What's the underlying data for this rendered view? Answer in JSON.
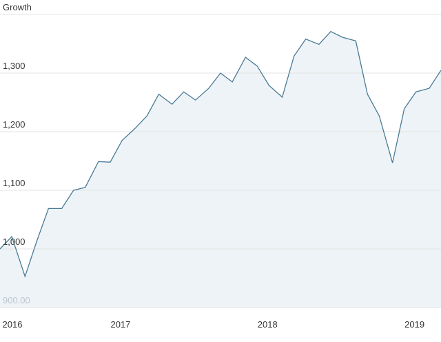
{
  "chart_data": {
    "type": "area",
    "title": "Growth",
    "x": [
      2016.18,
      2016.26,
      2016.35,
      2016.43,
      2016.51,
      2016.6,
      2016.68,
      2016.76,
      2016.85,
      2016.93,
      2017.01,
      2017.1,
      2017.18,
      2017.26,
      2017.35,
      2017.43,
      2017.51,
      2017.6,
      2017.68,
      2017.76,
      2017.85,
      2017.93,
      2018.01,
      2018.1,
      2018.18,
      2018.26,
      2018.35,
      2018.43,
      2018.51,
      2018.6,
      2018.68,
      2018.76,
      2018.85,
      2018.93,
      2019.01,
      2019.1,
      2019.18
    ],
    "values": [
      1000,
      1021,
      953,
      1013,
      1069,
      1069,
      1100,
      1105,
      1149,
      1148,
      1185,
      1206,
      1227,
      1264,
      1247,
      1268,
      1254,
      1274,
      1300,
      1285,
      1327,
      1312,
      1279,
      1259,
      1329,
      1358,
      1349,
      1371,
      1361,
      1355,
      1264,
      1227,
      1147,
      1239,
      1268,
      1274,
      1305
    ],
    "color": "#4a7a96",
    "fill": "#edf3f6",
    "xlim": [
      2016.18,
      2019.18
    ],
    "xticks": [
      2016,
      2017,
      2018,
      2019
    ],
    "ylim": [
      900,
      1400
    ],
    "yticks": [
      {
        "value": 900,
        "label": "900.00"
      },
      {
        "value": 1000,
        "label": "1,000"
      },
      {
        "value": 1100,
        "label": "1,100"
      },
      {
        "value": 1200,
        "label": "1,200"
      },
      {
        "value": 1300,
        "label": "1,300"
      }
    ],
    "grid": true
  }
}
